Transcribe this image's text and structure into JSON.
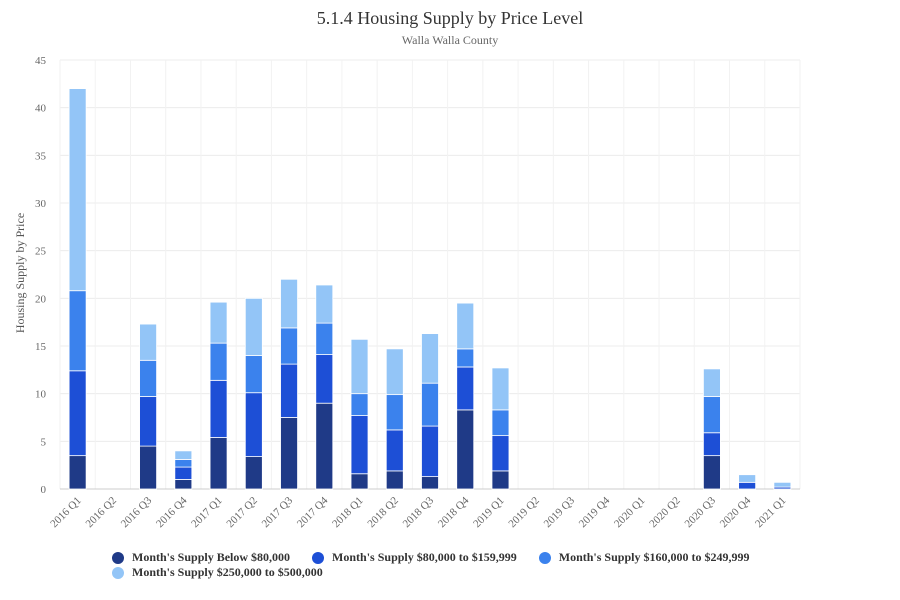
{
  "chart_data": {
    "type": "bar",
    "stacked": true,
    "title": "5.1.4 Housing Supply by Price Level",
    "subtitle": "Walla Walla County",
    "xlabel": "",
    "ylabel": "Housing Supply by Price",
    "ylim": [
      0,
      45
    ],
    "yticks": [
      0,
      5,
      10,
      15,
      20,
      25,
      30,
      35,
      40,
      45
    ],
    "grid": true,
    "legend_position": "bottom",
    "categories": [
      "2016 Q1",
      "2016 Q2",
      "2016 Q3",
      "2016 Q4",
      "2017 Q1",
      "2017 Q2",
      "2017 Q3",
      "2017 Q4",
      "2018 Q1",
      "2018 Q2",
      "2018 Q3",
      "2018 Q4",
      "2019 Q1",
      "2019 Q2",
      "2019 Q3",
      "2019 Q4",
      "2020 Q1",
      "2020 Q2",
      "2020 Q3",
      "2020 Q4",
      "2021 Q1"
    ],
    "series": [
      {
        "name": "Month's Supply Below $80,000",
        "color": "#1f3a87",
        "values": [
          3.5,
          0,
          4.5,
          1.0,
          5.4,
          3.4,
          7.5,
          9.0,
          1.6,
          1.9,
          1.3,
          8.3,
          1.9,
          0,
          0,
          0,
          0,
          0,
          3.5,
          0,
          0
        ]
      },
      {
        "name": "Month's Supply $80,000 to $159,999",
        "color": "#1d4fd6",
        "values": [
          8.9,
          0,
          5.2,
          1.3,
          6.0,
          6.7,
          5.6,
          5.1,
          6.1,
          4.3,
          5.3,
          4.5,
          3.7,
          0,
          0,
          0,
          0,
          0,
          2.4,
          0.7,
          0.2
        ]
      },
      {
        "name": "Month's Supply $160,000 to $249,999",
        "color": "#3b82ed",
        "values": [
          8.4,
          0,
          3.8,
          0.8,
          3.9,
          3.9,
          3.8,
          3.3,
          2.3,
          3.7,
          4.5,
          1.9,
          2.7,
          0,
          0,
          0,
          0,
          0,
          3.8,
          0,
          0
        ]
      },
      {
        "name": "Month's Supply $250,000 to $500,000",
        "color": "#93c5f7",
        "values": [
          21.2,
          0,
          3.8,
          0.9,
          4.3,
          6.0,
          5.1,
          4.0,
          5.7,
          4.8,
          5.2,
          4.8,
          4.4,
          0,
          0,
          0,
          0,
          0,
          2.9,
          0.8,
          0.5
        ]
      }
    ]
  }
}
